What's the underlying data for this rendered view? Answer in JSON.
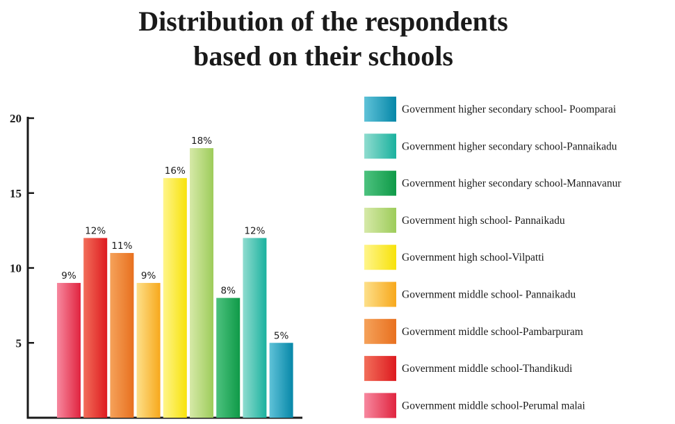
{
  "chart_data": {
    "type": "bar",
    "title_line1": "Distribution of the respondents",
    "title_line2": "based on their schools",
    "xlabel": "",
    "ylabel": "",
    "ylim": [
      0,
      20
    ],
    "yticks": [
      "5",
      "10",
      "15",
      "20"
    ],
    "grid": false,
    "legend_placement": "right",
    "categories": [
      "Government middle school-Perumal malai",
      "Government middle school-Thandikudi",
      "Government middle school-Pambarpuram",
      "Government middle school- Pannaikadu",
      "Government high school-Vilpatti",
      "Government high school- Pannaikadu",
      "Government higher secondary school-Mannavanur",
      "Government higher secondary school-Pannaikadu",
      "Government higher secondary school- Poomparai"
    ],
    "values": [
      9,
      12,
      11,
      9,
      16,
      18,
      8,
      12,
      5
    ],
    "data_labels": [
      "9%",
      "12%",
      "11%",
      "9%",
      "16%",
      "18%",
      "8%",
      "12%",
      "5%"
    ],
    "colors": [
      [
        "#f7889f",
        "#e0243f"
      ],
      [
        "#f26e5a",
        "#dd1a1f"
      ],
      [
        "#f5a25a",
        "#e8701f"
      ],
      [
        "#fde08a",
        "#f7a81c"
      ],
      [
        "#fff58a",
        "#f7e20a"
      ],
      [
        "#d6e9a8",
        "#9dcc5a"
      ],
      [
        "#4dc27f",
        "#0f9a48"
      ],
      [
        "#8fdccf",
        "#1ab19e"
      ],
      [
        "#5fc2d8",
        "#0687a8"
      ]
    ],
    "legend_order": [
      8,
      7,
      6,
      5,
      4,
      3,
      2,
      1,
      0
    ]
  }
}
